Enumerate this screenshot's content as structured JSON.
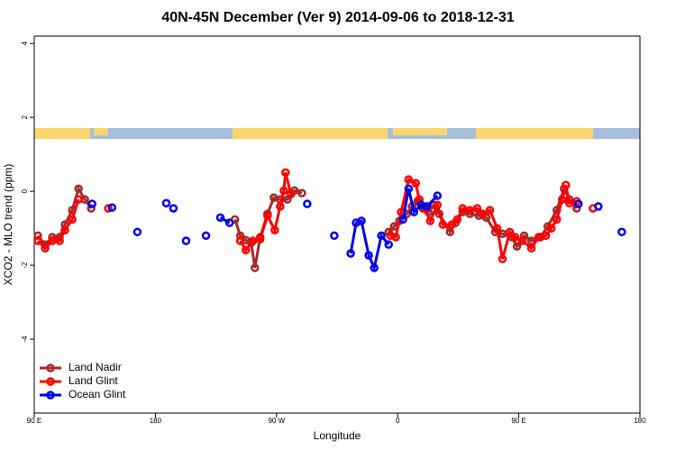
{
  "chart_data": {
    "type": "line",
    "title": "40N-45N December (Ver 9)   2014-09-06 to 2018-12-31",
    "x_label": "Longitude",
    "y_label": "XCO2 - MLO trend (ppm)",
    "xlim": [
      90,
      540
    ],
    "ylim": [
      -6,
      4.2
    ],
    "xticks": [
      {
        "value": 90,
        "label": "90 E"
      },
      180,
      {
        "value": 270,
        "label": "90 W"
      },
      {
        "value": 360,
        "label": "0"
      },
      {
        "value": 450,
        "label": "90 E"
      },
      {
        "value": 540,
        "label": "180"
      }
    ],
    "yticks": [
      4,
      2,
      0,
      -2,
      -4
    ],
    "legend": "bottom-left",
    "series": [
      {
        "name": "Land Nadir",
        "color": "#a52a2a",
        "x": [
          92.7,
          98.1,
          103.4,
          108.8,
          112.8,
          118.2,
          122.9,
          127.6,
          132.3,
          null,
          239.1,
          243.1,
          247.2,
          251.2,
          253.9,
          257.9,
          263.3,
          268.0,
          272.7,
          278.1,
          283.4,
          288.8,
          null,
          353.3,
          357.3,
          361.3,
          366.7,
          370.7,
          374.8,
          378.8,
          382.8,
          386.8,
          390.9,
          398.9,
          403.0,
          408.3,
          413.7,
          420.4,
          425.8,
          432.5,
          437.9,
          444.6,
          448.6,
          454.0,
          459.4,
          466.1,
          471.5,
          478.2,
          483.6,
          487.6,
          493.0
        ],
        "values": [
          -1.2,
          -1.44,
          -1.24,
          -1.24,
          -0.9,
          -0.51,
          0.07,
          -0.22,
          -0.46,
          null,
          -0.76,
          -1.2,
          -1.32,
          -1.39,
          -2.07,
          -1.24,
          -0.61,
          -0.17,
          -0.22,
          -0.22,
          0.02,
          -0.05,
          null,
          -1.1,
          -0.95,
          -0.8,
          -0.61,
          -0.41,
          -0.27,
          -0.46,
          -0.56,
          -0.37,
          -0.61,
          -1.1,
          -0.85,
          -0.56,
          -0.61,
          -0.66,
          -0.71,
          -1.1,
          -1.15,
          -1.24,
          -1.49,
          -1.2,
          -1.34,
          -1.24,
          -0.95,
          -0.51,
          0.07,
          -0.22,
          -0.46
        ]
      },
      {
        "name": "Land Glint",
        "color": "#ff0000",
        "x": [
          92.7,
          98.1,
          103.4,
          108.8,
          112.8,
          118.2,
          122.9,
          null,
          145.0,
          null,
          243.1,
          247.2,
          252.5,
          257.9,
          263.3,
          268.7,
          272.7,
          275.4,
          276.7,
          280.7,
          null,
          354.6,
          358.6,
          362.6,
          368.1,
          373.4,
          376.1,
          380.1,
          384.2,
          389.5,
          393.6,
          400.3,
          404.3,
          408.3,
          413.7,
          419.1,
          423.1,
          428.5,
          433.9,
          437.9,
          443.3,
          447.3,
          452.7,
          459.4,
          464.7,
          470.1,
          474.2,
          478.2,
          482.2,
          484.9,
          487.6,
          493.0,
          null,
          505.1
        ],
        "values": [
          -1.34,
          -1.54,
          -1.34,
          -1.34,
          -1.05,
          -0.76,
          -0.22,
          null,
          -0.46,
          null,
          -1.34,
          -1.59,
          -1.34,
          -1.29,
          -0.66,
          -1.05,
          -0.41,
          0.02,
          0.51,
          -0.07,
          null,
          -1.2,
          -1.24,
          -0.56,
          0.32,
          0.22,
          -0.22,
          -0.46,
          -0.8,
          -0.37,
          -0.9,
          -0.9,
          -0.76,
          -0.46,
          -0.51,
          -0.46,
          -0.61,
          -0.51,
          -1.0,
          -1.83,
          -1.1,
          -1.24,
          -1.34,
          -1.54,
          -1.24,
          -1.2,
          -1.0,
          -0.76,
          -0.22,
          0.17,
          -0.32,
          -0.27,
          null,
          -0.46
        ]
      },
      {
        "name": "Ocean Glint",
        "color": "#0000ee",
        "x": [
          133.0,
          null,
          147.8,
          null,
          166.6,
          null,
          188.1,
          null,
          193.4,
          null,
          202.8,
          null,
          217.6,
          null,
          228.3,
          235.1,
          null,
          292.8,
          null,
          312.9,
          null,
          325.1,
          329.1,
          333.1,
          338.5,
          342.6,
          347.9,
          353.3,
          null,
          364.0,
          368.1,
          372.1,
          377.5,
          381.5,
          389.5,
          null,
          494.3,
          null,
          509.1,
          null,
          526.5
        ],
        "values": [
          -0.34,
          null,
          -0.44,
          null,
          -1.1,
          null,
          -0.32,
          null,
          -0.46,
          null,
          -1.34,
          null,
          -1.2,
          null,
          -0.71,
          -0.85,
          null,
          -0.34,
          null,
          -1.2,
          null,
          -1.68,
          -0.85,
          -0.8,
          -1.73,
          -2.07,
          -1.2,
          -1.44,
          null,
          -0.76,
          0.07,
          -0.56,
          -0.37,
          -0.41,
          -0.12,
          null,
          -0.34,
          null,
          -0.41,
          null,
          -1.1
        ]
      }
    ]
  }
}
